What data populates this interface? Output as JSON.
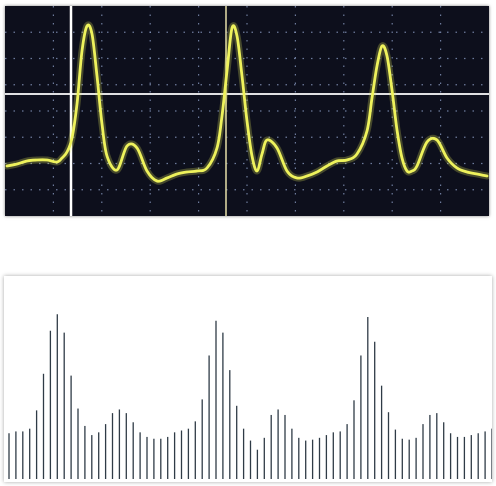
{
  "chart_data": [
    {
      "type": "line",
      "display": "oscilloscope",
      "grid": true,
      "colors": {
        "background": "#0d0f1c",
        "trace": "#eef25c",
        "grid": "#8d9fc7",
        "cursor": "#ffffff"
      },
      "xlim": [
        0,
        480
      ],
      "ylim": [
        0,
        210
      ],
      "x": [
        0,
        10,
        20,
        30,
        40,
        50,
        55,
        60,
        65,
        70,
        75,
        80,
        85,
        90,
        95,
        100,
        110,
        120,
        130,
        140,
        150,
        160,
        170,
        180,
        190,
        200,
        210,
        215,
        220,
        225,
        230,
        235,
        240,
        245,
        250,
        255,
        260,
        270,
        280,
        290,
        300,
        310,
        320,
        330,
        340,
        350,
        360,
        365,
        370,
        375,
        380,
        385,
        390,
        395,
        400,
        405,
        410,
        420,
        430,
        440,
        450,
        460,
        470,
        480
      ],
      "values": [
        50,
        52,
        55,
        56,
        56,
        54,
        58,
        64,
        78,
        112,
        165,
        190,
        182,
        140,
        92,
        60,
        46,
        70,
        68,
        45,
        35,
        38,
        42,
        44,
        45,
        48,
        68,
        100,
        145,
        188,
        180,
        140,
        95,
        60,
        45,
        62,
        76,
        68,
        45,
        38,
        40,
        44,
        50,
        55,
        56,
        62,
        85,
        118,
        150,
        170,
        160,
        126,
        86,
        58,
        45,
        45,
        50,
        74,
        76,
        58,
        48,
        44,
        42,
        40
      ]
    },
    {
      "type": "bar",
      "display": "stem",
      "grid": false,
      "colors": {
        "background": "#ffffff",
        "stem": "#2f3b46"
      },
      "ylim": [
        0,
        200
      ],
      "x": [
        0,
        1,
        2,
        3,
        4,
        5,
        6,
        7,
        8,
        9,
        10,
        11,
        12,
        13,
        14,
        15,
        16,
        17,
        18,
        19,
        20,
        21,
        22,
        23,
        24,
        25,
        26,
        27,
        28,
        29,
        30,
        31,
        32,
        33,
        34,
        35,
        36,
        37,
        38,
        39,
        40,
        41,
        42,
        43,
        44,
        45,
        46,
        47,
        48,
        49,
        50,
        51,
        52,
        53,
        54,
        55,
        56,
        57,
        58,
        59,
        60,
        61,
        62,
        63,
        64,
        65,
        66,
        67,
        68,
        69,
        70
      ],
      "values": [
        50,
        52,
        52,
        55,
        75,
        115,
        162,
        180,
        160,
        113,
        77,
        58,
        48,
        51,
        60,
        72,
        76,
        72,
        62,
        51,
        46,
        44,
        44,
        46,
        51,
        53,
        55,
        63,
        87,
        135,
        173,
        160,
        119,
        80,
        55,
        42,
        32,
        45,
        70,
        76,
        70,
        55,
        45,
        42,
        43,
        45,
        48,
        51,
        52,
        60,
        86,
        135,
        177,
        150,
        102,
        73,
        54,
        44,
        43,
        45,
        60,
        70,
        72,
        62,
        50,
        46,
        46,
        48,
        50,
        52,
        55
      ]
    }
  ]
}
